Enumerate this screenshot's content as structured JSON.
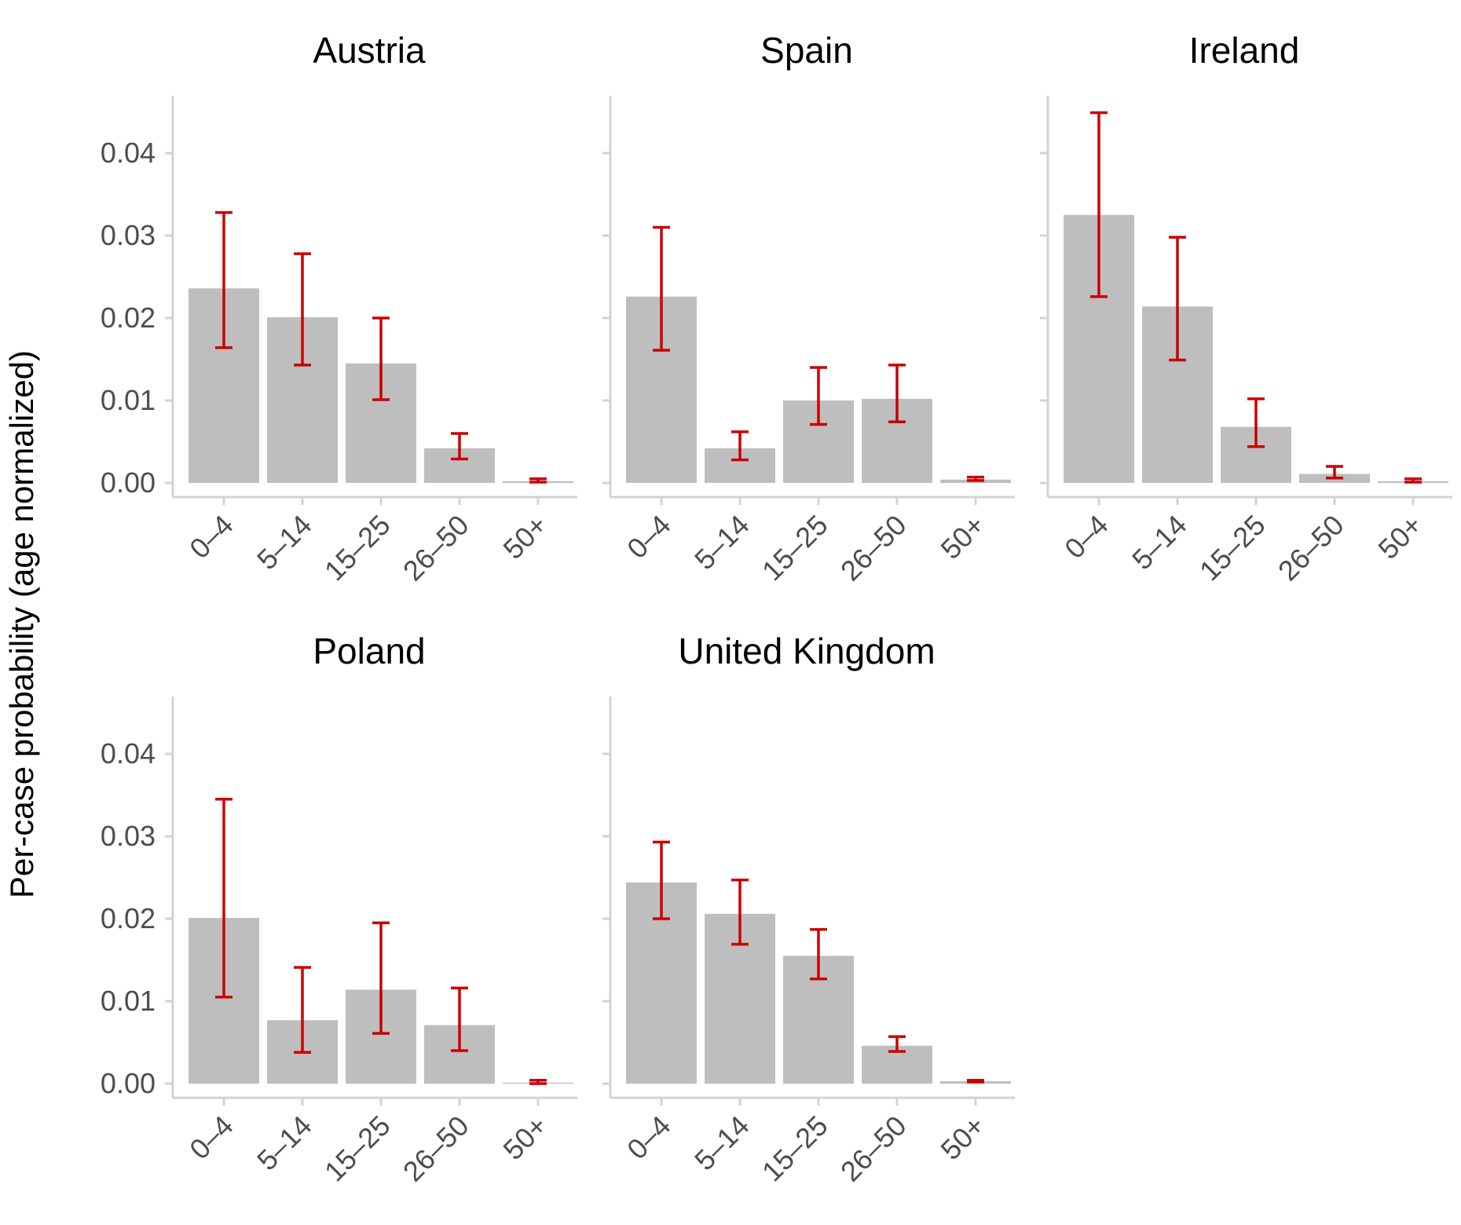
{
  "chart_data": {
    "type": "bar",
    "layout": "facet-wrap",
    "ylabel": "Per-case probability (age normalized)",
    "xlabel": "",
    "ylim": [
      0,
      0.046
    ],
    "y_ticks": [
      "0.00",
      "0.01",
      "0.02",
      "0.03",
      "0.04"
    ],
    "y_tick_values": [
      0,
      0.01,
      0.02,
      0.03,
      0.04
    ],
    "categories": [
      "0–4",
      "5–14",
      "15–25",
      "26–50",
      "50+"
    ],
    "colors": {
      "bar": "#bebebe",
      "error_bar": "#cc0000",
      "axis": "#d3d3d3"
    },
    "panels": [
      {
        "title": "Austria",
        "values": [
          0.0236,
          0.0201,
          0.0145,
          0.0042,
          0.0002
        ],
        "lower": [
          0.0164,
          0.0143,
          0.0101,
          0.0029,
          0.0001
        ],
        "upper": [
          0.0328,
          0.0278,
          0.02,
          0.006,
          0.0005
        ]
      },
      {
        "title": "Spain",
        "values": [
          0.0226,
          0.0042,
          0.01,
          0.0102,
          0.0004
        ],
        "lower": [
          0.0161,
          0.0028,
          0.0071,
          0.0074,
          0.0003
        ],
        "upper": [
          0.031,
          0.0062,
          0.014,
          0.0143,
          0.0007
        ]
      },
      {
        "title": "Ireland",
        "values": [
          0.0325,
          0.0214,
          0.0068,
          0.0011,
          0.0002
        ],
        "lower": [
          0.0226,
          0.0149,
          0.0044,
          0.0006,
          0.0001
        ],
        "upper": [
          0.0449,
          0.0298,
          0.0102,
          0.002,
          0.0005
        ]
      },
      {
        "title": "Poland",
        "values": [
          0.0201,
          0.0077,
          0.0114,
          0.0071,
          0.0001
        ],
        "lower": [
          0.0105,
          0.0038,
          0.0061,
          0.004,
          0.0
        ],
        "upper": [
          0.0345,
          0.0141,
          0.0195,
          0.0116,
          0.0004
        ]
      },
      {
        "title": "United Kingdom",
        "values": [
          0.0244,
          0.0206,
          0.0155,
          0.0046,
          0.0003
        ],
        "lower": [
          0.02,
          0.0169,
          0.0127,
          0.0039,
          0.0002
        ],
        "upper": [
          0.0293,
          0.0247,
          0.0187,
          0.0057,
          0.0004
        ]
      }
    ]
  }
}
